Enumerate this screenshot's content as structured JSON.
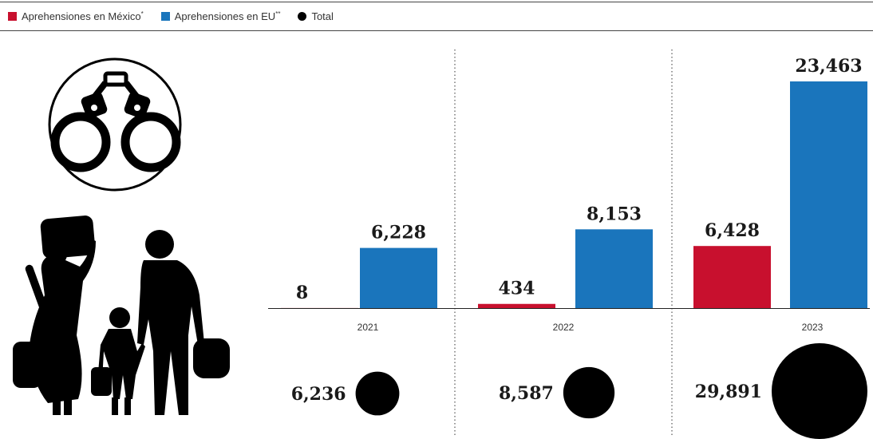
{
  "legend": {
    "mexico_label": "Aprehensiones en México",
    "mexico_sup": "*",
    "eu_label": "Aprehensiones en EU",
    "eu_sup": "**",
    "total_label": "Total"
  },
  "colors": {
    "mexico": "#c8102e",
    "eu": "#1a75bc",
    "total": "#000000"
  },
  "icons": [
    "handcuffs-icon",
    "migrant-family-silhouette"
  ],
  "chart_data": {
    "type": "bar",
    "categories": [
      "2021",
      "2022",
      "2023"
    ],
    "series": [
      {
        "name": "Aprehensiones en México",
        "values": [
          8,
          434,
          6428
        ],
        "labels": [
          "8",
          "434",
          "6,428"
        ]
      },
      {
        "name": "Aprehensiones en EU",
        "values": [
          6228,
          8153,
          23463
        ],
        "labels": [
          "6,228",
          "8,153",
          "23,463"
        ]
      }
    ],
    "totals": {
      "name": "Total",
      "values": [
        6236,
        8587,
        29891
      ],
      "labels": [
        "6,236",
        "8,587",
        "29,891"
      ]
    },
    "ylim": [
      0,
      23463
    ],
    "grid": false,
    "legend_position": "top-left"
  }
}
